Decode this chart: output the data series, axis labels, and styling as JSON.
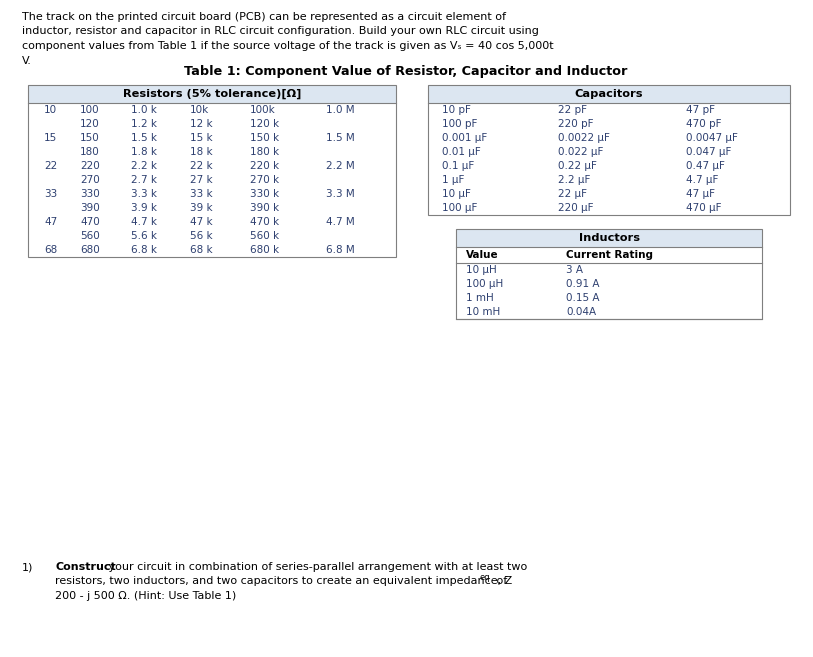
{
  "intro_lines": [
    "The track on the printed circuit board (PCB) can be represented as a circuit element of",
    "inductor, resistor and capacitor in RLC circuit configuration. Build your own RLC circuit using",
    "component values from Table 1 if the source voltage of the track is given as Vₛ = 40 cos 5,000t",
    "V."
  ],
  "table_title": "Table 1: Component Value of Resistor, Capacitor and Inductor",
  "resistor_header": "Resistors (5% tolerance)[Ω]",
  "resistor_data": [
    [
      "10",
      "100",
      "1.0 k",
      "10k",
      "100k",
      "1.0 M"
    ],
    [
      "",
      "120",
      "1.2 k",
      "12 k",
      "120 k",
      ""
    ],
    [
      "15",
      "150",
      "1.5 k",
      "15 k",
      "150 k",
      "1.5 M"
    ],
    [
      "",
      "180",
      "1.8 k",
      "18 k",
      "180 k",
      ""
    ],
    [
      "22",
      "220",
      "2.2 k",
      "22 k",
      "220 k",
      "2.2 M"
    ],
    [
      "",
      "270",
      "2.7 k",
      "27 k",
      "270 k",
      ""
    ],
    [
      "33",
      "330",
      "3.3 k",
      "33 k",
      "330 k",
      "3.3 M"
    ],
    [
      "",
      "390",
      "3.9 k",
      "39 k",
      "390 k",
      ""
    ],
    [
      "47",
      "470",
      "4.7 k",
      "47 k",
      "470 k",
      "4.7 M"
    ],
    [
      "",
      "560",
      "5.6 k",
      "56 k",
      "560 k",
      ""
    ],
    [
      "68",
      "680",
      "6.8 k",
      "68 k",
      "680 k",
      "6.8 M"
    ]
  ],
  "capacitor_header": "Capacitors",
  "capacitor_data": [
    [
      "10 pF",
      "22 pF",
      "47 pF"
    ],
    [
      "100 pF",
      "220 pF",
      "470 pF"
    ],
    [
      "0.001 μF",
      "0.0022 μF",
      "0.0047 μF"
    ],
    [
      "0.01 μF",
      "0.022 μF",
      "0.047 μF"
    ],
    [
      "0.1 μF",
      "0.22 μF",
      "0.47 μF"
    ],
    [
      "1 μF",
      "2.2 μF",
      "4.7 μF"
    ],
    [
      "10 μF",
      "22 μF",
      "47 μF"
    ],
    [
      "100 μF",
      "220 μF",
      "470 μF"
    ]
  ],
  "inductor_header": "Inductors",
  "inductor_col_headers": [
    "Value",
    "Current Rating"
  ],
  "inductor_data": [
    [
      "10 μH",
      "3 A"
    ],
    [
      "100 μH",
      "0.91 A"
    ],
    [
      "1 mH",
      "0.15 A"
    ],
    [
      "10 mH",
      "0.04A"
    ]
  ],
  "bg_color": "#ffffff",
  "header_bg": "#dce6f1",
  "text_color": "#2e4070",
  "border_color": "#7f7f7f"
}
